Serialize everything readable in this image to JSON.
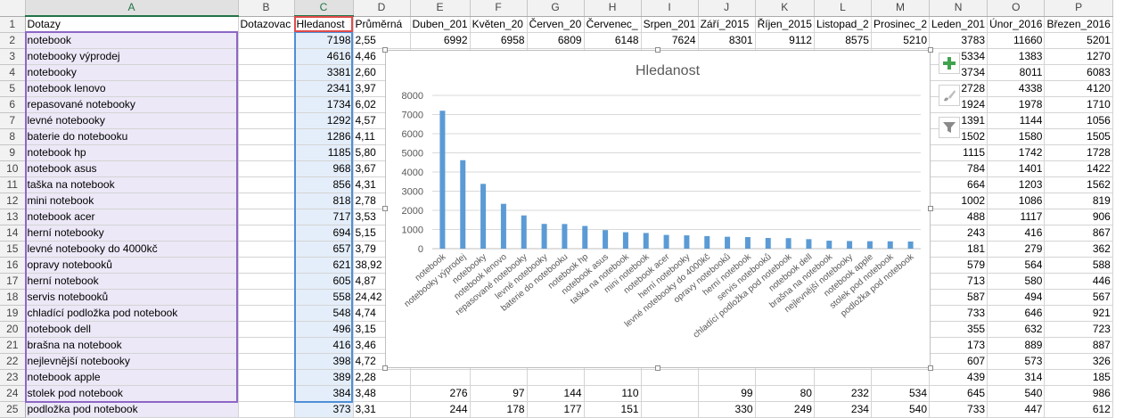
{
  "columns": [
    "",
    "A",
    "B",
    "C",
    "D",
    "E",
    "F",
    "G",
    "H",
    "I",
    "J",
    "K",
    "L",
    "M",
    "N",
    "O",
    "P"
  ],
  "header_row": [
    "Dotazy",
    "Dotazovac",
    "Hledanost",
    "Průměrná",
    "Duben_201",
    "Květen_20",
    "Červen_20",
    "Červenec_",
    "Srpen_201",
    "Září_2015",
    "Říjen_2015",
    "Listopad_2",
    "Prosinec_2",
    "Leden_201",
    "Únor_2016",
    "Březen_2016"
  ],
  "rows": [
    [
      "notebook",
      "",
      "7198",
      "2,55",
      "6992",
      "6958",
      "6809",
      "6148",
      "7624",
      "8301",
      "9112",
      "8575",
      "5210",
      "3783",
      "11660",
      "5201"
    ],
    [
      "notebooky výprodej",
      "",
      "4616",
      "4,46",
      "",
      "",
      "",
      "",
      "",
      "",
      "",
      "",
      "",
      "5334",
      "1383",
      "1270"
    ],
    [
      "notebooky",
      "",
      "3381",
      "2,60",
      "",
      "",
      "",
      "",
      "",
      "",
      "",
      "",
      "",
      "3734",
      "8011",
      "6083"
    ],
    [
      "notebook lenovo",
      "",
      "2341",
      "3,97",
      "",
      "",
      "",
      "",
      "",
      "",
      "",
      "",
      "",
      "2728",
      "4338",
      "4120"
    ],
    [
      "repasované notebooky",
      "",
      "1734",
      "6,02",
      "",
      "",
      "",
      "",
      "",
      "",
      "",
      "",
      "",
      "1924",
      "1978",
      "1710"
    ],
    [
      "levné notebooky",
      "",
      "1292",
      "4,57",
      "",
      "",
      "",
      "",
      "",
      "",
      "",
      "",
      "",
      "1391",
      "1144",
      "1056"
    ],
    [
      "baterie do notebooku",
      "",
      "1286",
      "4,11",
      "",
      "",
      "",
      "",
      "",
      "",
      "",
      "",
      "",
      "1502",
      "1580",
      "1505"
    ],
    [
      "notebook hp",
      "",
      "1185",
      "5,80",
      "",
      "",
      "",
      "",
      "",
      "",
      "",
      "",
      "",
      "1115",
      "1742",
      "1728"
    ],
    [
      "notebook asus",
      "",
      "968",
      "3,67",
      "",
      "",
      "",
      "",
      "",
      "",
      "",
      "",
      "",
      "784",
      "1401",
      "1422"
    ],
    [
      "taška na notebook",
      "",
      "856",
      "4,31",
      "",
      "",
      "",
      "",
      "",
      "",
      "",
      "",
      "",
      "664",
      "1203",
      "1562"
    ],
    [
      "mini notebook",
      "",
      "818",
      "2,78",
      "",
      "",
      "",
      "",
      "",
      "",
      "",
      "",
      "",
      "1002",
      "1086",
      "819"
    ],
    [
      "notebook acer",
      "",
      "717",
      "3,53",
      "",
      "",
      "",
      "",
      "",
      "",
      "",
      "",
      "",
      "488",
      "1117",
      "906"
    ],
    [
      "herní notebooky",
      "",
      "694",
      "5,15",
      "",
      "",
      "",
      "",
      "",
      "",
      "",
      "",
      "",
      "243",
      "416",
      "867"
    ],
    [
      "levné notebooky do 4000kč",
      "",
      "657",
      "3,79",
      "",
      "",
      "",
      "",
      "",
      "",
      "",
      "",
      "",
      "181",
      "279",
      "362"
    ],
    [
      "opravy notebooků",
      "",
      "621",
      "38,92",
      "",
      "",
      "",
      "",
      "",
      "",
      "",
      "",
      "",
      "579",
      "564",
      "588"
    ],
    [
      "herní notebook",
      "",
      "605",
      "4,87",
      "",
      "",
      "",
      "",
      "",
      "",
      "",
      "",
      "",
      "713",
      "580",
      "446"
    ],
    [
      "servis notebooků",
      "",
      "558",
      "24,42",
      "",
      "",
      "",
      "",
      "",
      "",
      "",
      "",
      "",
      "587",
      "494",
      "567"
    ],
    [
      "chladící podložka pod notebook",
      "",
      "548",
      "4,74",
      "",
      "",
      "",
      "",
      "",
      "",
      "",
      "",
      "",
      "733",
      "646",
      "921"
    ],
    [
      "notebook dell",
      "",
      "496",
      "3,15",
      "",
      "",
      "",
      "",
      "",
      "",
      "",
      "",
      "",
      "355",
      "632",
      "723"
    ],
    [
      "brašna na notebook",
      "",
      "416",
      "3,46",
      "",
      "",
      "",
      "",
      "",
      "",
      "",
      "",
      "",
      "173",
      "889",
      "887"
    ],
    [
      "nejlevnější notebooky",
      "",
      "398",
      "4,72",
      "",
      "",
      "",
      "",
      "",
      "",
      "",
      "",
      "",
      "607",
      "573",
      "326"
    ],
    [
      "notebook apple",
      "",
      "389",
      "2,28",
      "",
      "",
      "",
      "",
      "",
      "",
      "",
      "",
      "",
      "439",
      "314",
      "185"
    ],
    [
      "stolek pod notebook",
      "",
      "384",
      "3,48",
      "276",
      "97",
      "144",
      "110",
      "",
      "99",
      "80",
      "232",
      "534",
      "645",
      "540",
      "986"
    ],
    [
      "podložka pod notebook",
      "",
      "373",
      "3,31",
      "244",
      "178",
      "177",
      "151",
      "",
      "330",
      "249",
      "234",
      "540",
      "733",
      "447",
      "612"
    ]
  ],
  "chart_data": {
    "type": "bar",
    "title": "Hledanost",
    "categories": [
      "notebook",
      "notebooky výprodej",
      "notebooky",
      "notebook lenovo",
      "repasované notebooky",
      "levné notebooky",
      "baterie do notebooku",
      "notebook hp",
      "notebook asus",
      "taška na notebook",
      "mini notebook",
      "notebook acer",
      "herní notebooky",
      "levné notebooky do 4000kč",
      "opravy notebooků",
      "herní notebook",
      "servis notebooků",
      "chladící podložka pod notebook",
      "notebook dell",
      "brašna na notebook",
      "nejlevnější notebooky",
      "notebook apple",
      "stolek pod notebook",
      "podložka pod notebook"
    ],
    "values": [
      7198,
      4616,
      3381,
      2341,
      1734,
      1292,
      1286,
      1185,
      968,
      856,
      818,
      717,
      694,
      657,
      621,
      605,
      558,
      548,
      496,
      416,
      398,
      389,
      384,
      373
    ],
    "ylim": [
      0,
      8000
    ],
    "yticks": [
      0,
      1000,
      2000,
      3000,
      4000,
      5000,
      6000,
      7000,
      8000
    ],
    "grid": true,
    "legend": "none",
    "bar_color": "#5b9bd5"
  },
  "chart_tools": [
    {
      "name": "add-chart-element",
      "icon": "plus-icon",
      "color": "#3fa34d"
    },
    {
      "name": "chart-styles",
      "icon": "brush-icon",
      "color": "#aaaaaa"
    },
    {
      "name": "chart-filters",
      "icon": "filter-icon",
      "color": "#8a8a8a"
    }
  ]
}
